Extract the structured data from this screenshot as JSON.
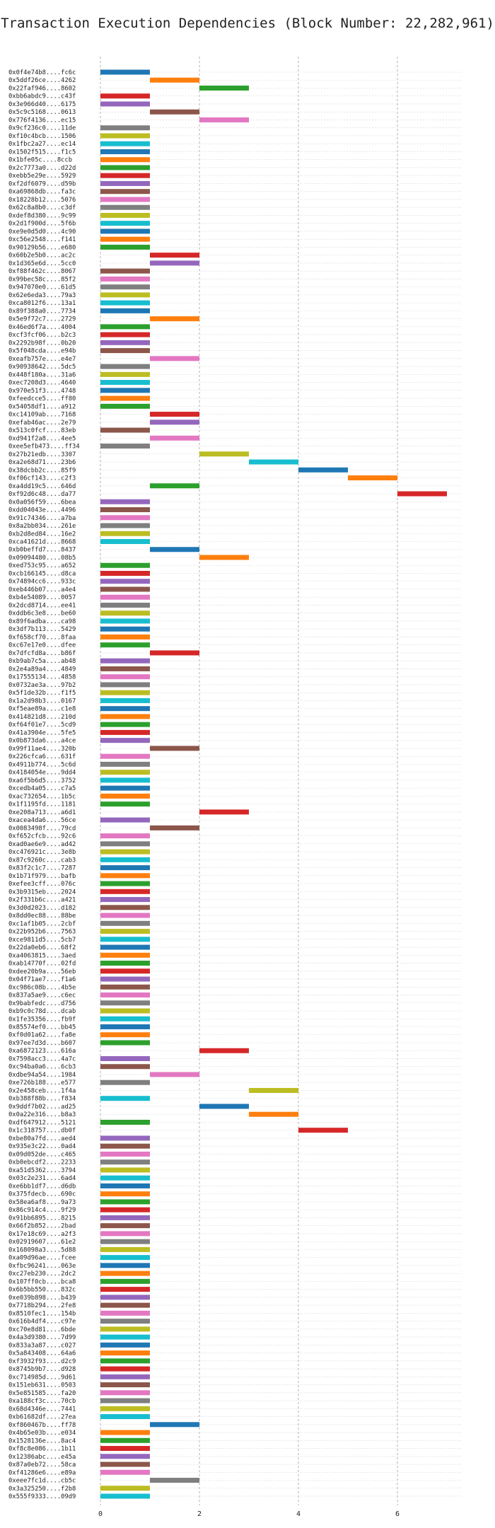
{
  "chart_data": {
    "type": "bar",
    "orientation": "horizontal-gantt",
    "title": "Transaction Execution Dependencies (Block Number: 22,282,961)",
    "xlabel": "",
    "ylabel": "",
    "xlim": [
      0,
      7.3
    ],
    "x_ticks": [
      0,
      2,
      4,
      6
    ],
    "grid": "vertical-dashed",
    "colors": [
      "#1f77b4",
      "#ff7f0e",
      "#2ca02c",
      "#d62728",
      "#9467bd",
      "#8c564b",
      "#e377c2",
      "#7f7f7f",
      "#bcbd22",
      "#17becf"
    ],
    "transactions": [
      {
        "label": "0x0f4e74b8....fc6c",
        "start": 0,
        "color": 0
      },
      {
        "label": "0x5ddf26ce....4262",
        "start": 1,
        "color": 1
      },
      {
        "label": "0x22faf946....8602",
        "start": 2,
        "color": 2
      },
      {
        "label": "0xbb6abdc9....c43f",
        "start": 0,
        "color": 3
      },
      {
        "label": "0x3e966d40....6175",
        "start": 0,
        "color": 4
      },
      {
        "label": "0x5c9c5168....0613",
        "start": 1,
        "color": 5
      },
      {
        "label": "0x776f4136....ec15",
        "start": 2,
        "color": 6
      },
      {
        "label": "0x9cf236c0....11de",
        "start": 0,
        "color": 7
      },
      {
        "label": "0xf10c4bcb....1506",
        "start": 0,
        "color": 8
      },
      {
        "label": "0x1fbc2a27....ec14",
        "start": 0,
        "color": 9
      },
      {
        "label": "0x1502f515....f1c5",
        "start": 0,
        "color": 0
      },
      {
        "label": "0x1bfe05c....8ccb",
        "start": 0,
        "color": 1
      },
      {
        "label": "0x2c7773a0....d22d",
        "start": 0,
        "color": 2
      },
      {
        "label": "0xebb5e29e....5929",
        "start": 0,
        "color": 3
      },
      {
        "label": "0xf2df6079....d59b",
        "start": 0,
        "color": 4
      },
      {
        "label": "0xa69868db....fa3c",
        "start": 0,
        "color": 5
      },
      {
        "label": "0x18228b12....5076",
        "start": 0,
        "color": 6
      },
      {
        "label": "0x62c8a8b0....c3df",
        "start": 0,
        "color": 7
      },
      {
        "label": "0xdef8d380....9c99",
        "start": 0,
        "color": 8
      },
      {
        "label": "0x2d1f900d....5f6b",
        "start": 0,
        "color": 9
      },
      {
        "label": "0xe9e0d5d0....4c90",
        "start": 0,
        "color": 0
      },
      {
        "label": "0xc56e2548....f141",
        "start": 0,
        "color": 1
      },
      {
        "label": "0x90129b56....e680",
        "start": 0,
        "color": 2
      },
      {
        "label": "0x60b2e5b0....ac2c",
        "start": 1,
        "color": 3
      },
      {
        "label": "0x1d365e6d....5cc0",
        "start": 1,
        "color": 4
      },
      {
        "label": "0xf88f462c....8067",
        "start": 0,
        "color": 5
      },
      {
        "label": "0x99bec58c....85f2",
        "start": 0,
        "color": 6
      },
      {
        "label": "0x947070e0....61d5",
        "start": 0,
        "color": 7
      },
      {
        "label": "0x62e6eda3....79a3",
        "start": 0,
        "color": 8
      },
      {
        "label": "0xca8012f6....13a1",
        "start": 0,
        "color": 9
      },
      {
        "label": "0x89f388a0....7734",
        "start": 0,
        "color": 0
      },
      {
        "label": "0x5e9f72c7....2729",
        "start": 1,
        "color": 1
      },
      {
        "label": "0x46ed6f7a....4004",
        "start": 0,
        "color": 2
      },
      {
        "label": "0xcf3fcf06....b2c3",
        "start": 0,
        "color": 3
      },
      {
        "label": "0x2292b98f....0b20",
        "start": 0,
        "color": 4
      },
      {
        "label": "0x5f048cda....e94b",
        "start": 0,
        "color": 5
      },
      {
        "label": "0xeafb757e....e4e7",
        "start": 1,
        "color": 6
      },
      {
        "label": "0x90938642....5dc5",
        "start": 0,
        "color": 7
      },
      {
        "label": "0x448f180a....31a6",
        "start": 0,
        "color": 8
      },
      {
        "label": "0xec7208d3....4640",
        "start": 0,
        "color": 9
      },
      {
        "label": "0x970e51f3....4748",
        "start": 0,
        "color": 0
      },
      {
        "label": "0xfeedcce5....ff80",
        "start": 0,
        "color": 1
      },
      {
        "label": "0x54058df1....a912",
        "start": 0,
        "color": 2
      },
      {
        "label": "0xc14109ab....7168",
        "start": 1,
        "color": 3
      },
      {
        "label": "0xefab46ac....2e79",
        "start": 1,
        "color": 4
      },
      {
        "label": "0x513c0fcf....83eb",
        "start": 0,
        "color": 5
      },
      {
        "label": "0xd941f2a8....4ee5",
        "start": 1,
        "color": 6
      },
      {
        "label": "0xee5efb473....ff34",
        "start": 0,
        "color": 7
      },
      {
        "label": "0x27b21edb....3307",
        "start": 2,
        "color": 8
      },
      {
        "label": "0xa2e68d71....23b6",
        "start": 3,
        "color": 9
      },
      {
        "label": "0x38dcbb2c....85f9",
        "start": 4,
        "color": 0
      },
      {
        "label": "0xf06cf143....c2f3",
        "start": 5,
        "color": 1
      },
      {
        "label": "0xa4dd19c5....646d",
        "start": 1,
        "color": 2
      },
      {
        "label": "0xf92d6c48....da77",
        "start": 6,
        "color": 3
      },
      {
        "label": "0x0a056f59....6bea",
        "start": 0,
        "color": 4
      },
      {
        "label": "0xdd04043e....4496",
        "start": 0,
        "color": 5
      },
      {
        "label": "0x91c74346....a7ba",
        "start": 0,
        "color": 6
      },
      {
        "label": "0x8a2bb034....261e",
        "start": 0,
        "color": 7
      },
      {
        "label": "0xb2d8ed84....16e2",
        "start": 0,
        "color": 8
      },
      {
        "label": "0xca41621d....8668",
        "start": 0,
        "color": 9
      },
      {
        "label": "0xb0beffd7....8437",
        "start": 1,
        "color": 0
      },
      {
        "label": "0x09094480....08b5",
        "start": 2,
        "color": 1
      },
      {
        "label": "0xed753c95....a652",
        "start": 0,
        "color": 2
      },
      {
        "label": "0xcb166145....d8ca",
        "start": 0,
        "color": 3
      },
      {
        "label": "0x74894cc6....933c",
        "start": 0,
        "color": 4
      },
      {
        "label": "0xeb446b07....a4e4",
        "start": 0,
        "color": 5
      },
      {
        "label": "0xb4e54089....0057",
        "start": 0,
        "color": 6
      },
      {
        "label": "0x2dcd8714....ee41",
        "start": 0,
        "color": 7
      },
      {
        "label": "0xddb6c3e8....be60",
        "start": 0,
        "color": 8
      },
      {
        "label": "0x89f6adba....ca98",
        "start": 0,
        "color": 9
      },
      {
        "label": "0x3df7b113....5429",
        "start": 0,
        "color": 0
      },
      {
        "label": "0xf658cf70....8faa",
        "start": 0,
        "color": 1
      },
      {
        "label": "0xc67e17e0....dfee",
        "start": 0,
        "color": 2
      },
      {
        "label": "0x7dfcfd8a....b86f",
        "start": 1,
        "color": 3
      },
      {
        "label": "0xb9ab7c5a....ab48",
        "start": 0,
        "color": 4
      },
      {
        "label": "0x2e4a89a4....4849",
        "start": 0,
        "color": 5
      },
      {
        "label": "0x17555134....4858",
        "start": 0,
        "color": 6
      },
      {
        "label": "0x0732ae3a....97b2",
        "start": 0,
        "color": 7
      },
      {
        "label": "0x5f1de32b....f1f5",
        "start": 0,
        "color": 8
      },
      {
        "label": "0x1a2d98b3....0167",
        "start": 0,
        "color": 9
      },
      {
        "label": "0xf5eae89a....c1e8",
        "start": 0,
        "color": 0
      },
      {
        "label": "0x414821d8....210d",
        "start": 0,
        "color": 1
      },
      {
        "label": "0xf64f01e7....5cd9",
        "start": 0,
        "color": 2
      },
      {
        "label": "0x41a3904e....5fe5",
        "start": 0,
        "color": 3
      },
      {
        "label": "0x0b873da6....a4ce",
        "start": 0,
        "color": 4
      },
      {
        "label": "0x99f11ae4....320b",
        "start": 1,
        "color": 5
      },
      {
        "label": "0x226cfca6....631f",
        "start": 0,
        "color": 6
      },
      {
        "label": "0x4911b774....5c6d",
        "start": 0,
        "color": 7
      },
      {
        "label": "0x4184054e....9dd4",
        "start": 0,
        "color": 8
      },
      {
        "label": "0xa6f5b6d5....3752",
        "start": 0,
        "color": 9
      },
      {
        "label": "0xcedb4a05....c7a5",
        "start": 0,
        "color": 0
      },
      {
        "label": "0xac732654....1b5c",
        "start": 0,
        "color": 1
      },
      {
        "label": "0x1f1195fd....1181",
        "start": 0,
        "color": 2
      },
      {
        "label": "0xe208a713....a6d1",
        "start": 2,
        "color": 3
      },
      {
        "label": "0xacea4da6....56ce",
        "start": 0,
        "color": 4
      },
      {
        "label": "0x0083498f....79cd",
        "start": 1,
        "color": 5
      },
      {
        "label": "0xf652cfcb....92c6",
        "start": 0,
        "color": 6
      },
      {
        "label": "0xad0ae6e9....ad42",
        "start": 0,
        "color": 7
      },
      {
        "label": "0xc476921c....3e8b",
        "start": 0,
        "color": 8
      },
      {
        "label": "0x87c9260c....cab3",
        "start": 0,
        "color": 9
      },
      {
        "label": "0x83f2c1c7....7287",
        "start": 0,
        "color": 0
      },
      {
        "label": "0x1b71f979....bafb",
        "start": 0,
        "color": 1
      },
      {
        "label": "0xefee3cff....076c",
        "start": 0,
        "color": 2
      },
      {
        "label": "0x3b9315eb....2024",
        "start": 0,
        "color": 3
      },
      {
        "label": "0x2f331b6c....a421",
        "start": 0,
        "color": 4
      },
      {
        "label": "0x3d0d2023....d182",
        "start": 0,
        "color": 5
      },
      {
        "label": "0x8dd0ec88....88be",
        "start": 0,
        "color": 6
      },
      {
        "label": "0xc1af1b05....2cbf",
        "start": 0,
        "color": 7
      },
      {
        "label": "0x22b952b6....7563",
        "start": 0,
        "color": 8
      },
      {
        "label": "0xce9811d5....5cb7",
        "start": 0,
        "color": 9
      },
      {
        "label": "0x22da0eb6....68f2",
        "start": 0,
        "color": 0
      },
      {
        "label": "0xa4063815....3aed",
        "start": 0,
        "color": 1
      },
      {
        "label": "0xab14770f....02fd",
        "start": 0,
        "color": 2
      },
      {
        "label": "0xdee20b9a....56eb",
        "start": 0,
        "color": 3
      },
      {
        "label": "0x04f71ae7....f1a6",
        "start": 0,
        "color": 4
      },
      {
        "label": "0xc986c08b....4b5e",
        "start": 0,
        "color": 5
      },
      {
        "label": "0x837a5ae9....c6ec",
        "start": 0,
        "color": 6
      },
      {
        "label": "0x9babfedc....d756",
        "start": 0,
        "color": 7
      },
      {
        "label": "0xb9c0c78d....dcab",
        "start": 0,
        "color": 8
      },
      {
        "label": "0x1fe35356....fb9f",
        "start": 0,
        "color": 9
      },
      {
        "label": "0x85574ef0....bb45",
        "start": 0,
        "color": 0
      },
      {
        "label": "0xf0d01a62....fa8e",
        "start": 0,
        "color": 1
      },
      {
        "label": "0x97ee7d3d....b607",
        "start": 0,
        "color": 2
      },
      {
        "label": "0xa6872123....616a",
        "start": 2,
        "color": 3
      },
      {
        "label": "0x7598acc3....4a7c",
        "start": 0,
        "color": 4
      },
      {
        "label": "0xc94ba0a6....6cb3",
        "start": 0,
        "color": 5
      },
      {
        "label": "0xdbe94a54....1984",
        "start": 1,
        "color": 6
      },
      {
        "label": "0xe726b188....e577",
        "start": 0,
        "color": 7
      },
      {
        "label": "0x2e458ceb....1f4a",
        "start": 3,
        "color": 8
      },
      {
        "label": "0xb388f88b....f834",
        "start": 0,
        "color": 9
      },
      {
        "label": "0x9ddf7b02....ad25",
        "start": 2,
        "color": 0
      },
      {
        "label": "0x0a22e316....b8a3",
        "start": 3,
        "color": 1
      },
      {
        "label": "0xdf647912....5121",
        "start": 0,
        "color": 2
      },
      {
        "label": "0x1c318757....db0f",
        "start": 4,
        "color": 3
      },
      {
        "label": "0xbe80a7fd....aed4",
        "start": 0,
        "color": 4
      },
      {
        "label": "0x935e3c22....0ad4",
        "start": 0,
        "color": 5
      },
      {
        "label": "0x09d052de....c465",
        "start": 0,
        "color": 6
      },
      {
        "label": "0xb0ebcdf2....2233",
        "start": 0,
        "color": 7
      },
      {
        "label": "0xa51d5362....3794",
        "start": 0,
        "color": 8
      },
      {
        "label": "0x03c2e231....6ad4",
        "start": 0,
        "color": 9
      },
      {
        "label": "0xe6bb1df7....d6db",
        "start": 0,
        "color": 0
      },
      {
        "label": "0x375fdecb....690c",
        "start": 0,
        "color": 1
      },
      {
        "label": "0x58ea6af8....9a73",
        "start": 0,
        "color": 2
      },
      {
        "label": "0x86c914c4....9f29",
        "start": 0,
        "color": 3
      },
      {
        "label": "0x91bb6895....8215",
        "start": 0,
        "color": 4
      },
      {
        "label": "0x66f2b852....2bad",
        "start": 0,
        "color": 5
      },
      {
        "label": "0x17e18c69....a2f3",
        "start": 0,
        "color": 6
      },
      {
        "label": "0x02919607....61e2",
        "start": 0,
        "color": 7
      },
      {
        "label": "0x168098a3....5d88",
        "start": 0,
        "color": 8
      },
      {
        "label": "0xa09d96ae....fcee",
        "start": 0,
        "color": 9
      },
      {
        "label": "0xfbc96241....063e",
        "start": 0,
        "color": 0
      },
      {
        "label": "0xc27eb230....2dc2",
        "start": 0,
        "color": 1
      },
      {
        "label": "0x107ff0cb....bca8",
        "start": 0,
        "color": 2
      },
      {
        "label": "0x6b5bb550....832c",
        "start": 0,
        "color": 3
      },
      {
        "label": "0xe039b898....b439",
        "start": 0,
        "color": 4
      },
      {
        "label": "0x7718b294....2fe8",
        "start": 0,
        "color": 5
      },
      {
        "label": "0x8510fec1....154b",
        "start": 0,
        "color": 6
      },
      {
        "label": "0x616b4df4....c97e",
        "start": 0,
        "color": 7
      },
      {
        "label": "0xc70e8d81....6bde",
        "start": 0,
        "color": 8
      },
      {
        "label": "0x4a3d9380....7d99",
        "start": 0,
        "color": 9
      },
      {
        "label": "0x833a3a87....c027",
        "start": 0,
        "color": 0
      },
      {
        "label": "0x5a843408....64a6",
        "start": 0,
        "color": 1
      },
      {
        "label": "0xf3932f93....d2c9",
        "start": 0,
        "color": 2
      },
      {
        "label": "0x8745b9b7....d928",
        "start": 0,
        "color": 3
      },
      {
        "label": "0xc714985d....9d61",
        "start": 0,
        "color": 4
      },
      {
        "label": "0x151eb631....0503",
        "start": 0,
        "color": 5
      },
      {
        "label": "0x5e851585....fa20",
        "start": 0,
        "color": 6
      },
      {
        "label": "0xa188cf3c....70cb",
        "start": 0,
        "color": 7
      },
      {
        "label": "0x68d4346e....7441",
        "start": 0,
        "color": 8
      },
      {
        "label": "0xb61682df....27ea",
        "start": 0,
        "color": 9
      },
      {
        "label": "0xf860467b....ff78",
        "start": 1,
        "color": 0
      },
      {
        "label": "0x4b65e03b....e034",
        "start": 0,
        "color": 1
      },
      {
        "label": "0x1528136e....8ac4",
        "start": 0,
        "color": 2
      },
      {
        "label": "0xf8c8e086....1b11",
        "start": 0,
        "color": 3
      },
      {
        "label": "0x12386abc....e45a",
        "start": 0,
        "color": 4
      },
      {
        "label": "0x87a0eb72....58ca",
        "start": 0,
        "color": 5
      },
      {
        "label": "0xf41286e6....e89a",
        "start": 0,
        "color": 6
      },
      {
        "label": "0xeee7fc1d....cb5c",
        "start": 1,
        "color": 7
      },
      {
        "label": "0x3a325250....f2b8",
        "start": 0,
        "color": 8
      },
      {
        "label": "0x555f9333....09d9",
        "start": 0,
        "color": 9
      }
    ]
  }
}
